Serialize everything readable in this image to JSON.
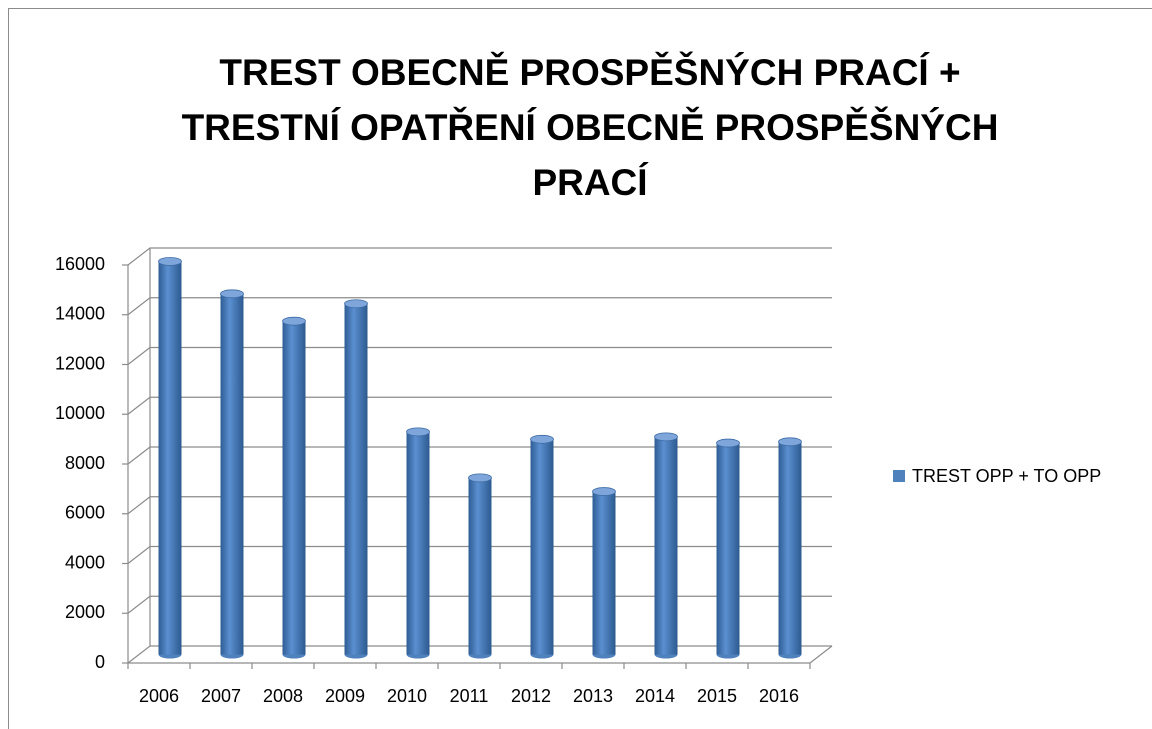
{
  "chart_data": {
    "type": "bar",
    "title": [
      "TREST OBECNĚ PROSPĚŠNÝCH PRACÍ +",
      "TRESTNÍ OPATŘENÍ OBECNĚ PROSPĚŠNÝCH",
      "PRACÍ"
    ],
    "categories": [
      "2006",
      "2007",
      "2008",
      "2009",
      "2010",
      "2011",
      "2012",
      "2013",
      "2014",
      "2015",
      "2016"
    ],
    "series": [
      {
        "name": "TREST OPP + TO OPP",
        "color": "#4f81bd",
        "values": [
          15800,
          14500,
          13400,
          14100,
          8950,
          7100,
          8650,
          6550,
          8750,
          8500,
          8550
        ]
      }
    ],
    "ylim": [
      0,
      16000
    ],
    "yticks": [
      0,
      2000,
      4000,
      6000,
      8000,
      10000,
      12000,
      14000,
      16000
    ],
    "grid": true,
    "legend": "right"
  }
}
